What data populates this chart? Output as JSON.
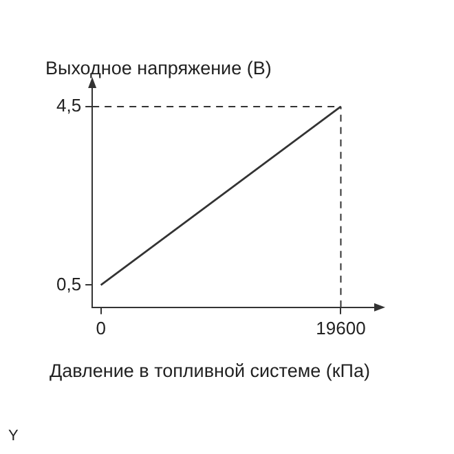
{
  "chart_data": {
    "type": "line",
    "xlabel": "Давление в топливной системе (кПа)",
    "ylabel": "Выходное напряжение (В)",
    "annotations": [
      "Y"
    ],
    "x": [
      0,
      19600
    ],
    "series": [
      {
        "color": "#333333",
        "values": [
          0.5,
          4.5
        ]
      }
    ],
    "xlim": [
      -700,
      23000
    ],
    "ylim": [
      0,
      5.1
    ],
    "xticks": [
      0,
      19600
    ],
    "yticks": [
      {
        "value": 0.5,
        "label": "0,5"
      },
      {
        "value": 4.5,
        "label": "4,5"
      }
    ],
    "ref_lines": [
      {
        "axis": "y",
        "value": 4.5,
        "line_style": "dashed",
        "color": "#333333"
      },
      {
        "axis": "x",
        "value": 19600,
        "line_style": "dashed",
        "color": "#333333"
      }
    ],
    "grid": false,
    "legend": false,
    "marker": "none",
    "line_style": "solid"
  }
}
